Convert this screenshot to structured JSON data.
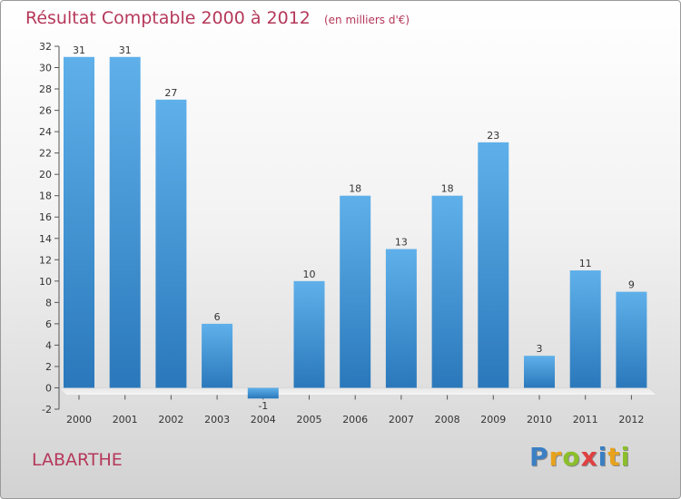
{
  "header": {
    "title": "Résultat Comptable 2000 à 2012",
    "subtitle": "(en milliers d'€)"
  },
  "place": "LABARTHE",
  "logo": {
    "text": "Proxiti",
    "letters": [
      {
        "ch": "P",
        "color": "#3b7fc4"
      },
      {
        "ch": "r",
        "color": "#e8a21c"
      },
      {
        "ch": "o",
        "color": "#8bbf2a"
      },
      {
        "ch": "x",
        "color": "#e04040"
      },
      {
        "ch": "i",
        "color": "#3b7fc4"
      },
      {
        "ch": "t",
        "color": "#e8a21c"
      },
      {
        "ch": "i",
        "color": "#8bbf2a"
      }
    ]
  },
  "colors": {
    "bar_top": "#5fb0ea",
    "bar_bottom": "#2a78bb",
    "title": "#b5385a"
  },
  "chart_data": {
    "type": "bar",
    "categories": [
      "2000",
      "2001",
      "2002",
      "2003",
      "2004",
      "2005",
      "2006",
      "2007",
      "2008",
      "2009",
      "2010",
      "2011",
      "2012"
    ],
    "values": [
      31,
      31,
      27,
      6,
      -1,
      10,
      18,
      13,
      18,
      23,
      3,
      11,
      9
    ],
    "ylim": [
      -2,
      32
    ],
    "yticks": [
      -2,
      0,
      2,
      4,
      6,
      8,
      10,
      12,
      14,
      16,
      18,
      20,
      22,
      24,
      26,
      28,
      30,
      32
    ],
    "grid": false,
    "title": "Résultat Comptable 2000 à 2012",
    "xlabel": "",
    "ylabel": ""
  }
}
